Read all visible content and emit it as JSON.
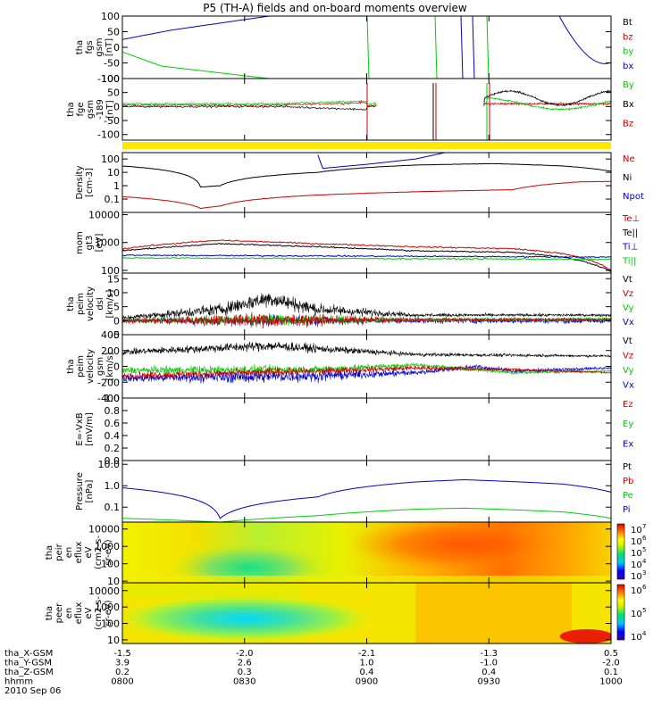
{
  "figure": {
    "title": "P5 (TH-A) fields and on-board moments overview",
    "date": "2010 Sep 06"
  },
  "chart_data": [
    {
      "type": "line",
      "title": "",
      "ylabel": [
        "tha",
        "fgs",
        "gsm",
        "[nT]"
      ],
      "ylim": [
        -100,
        100
      ],
      "yticks": [
        "100",
        "50",
        "0",
        "-50",
        "-100"
      ],
      "series": [
        {
          "name": "Bt",
          "color": "#000000",
          "values": []
        },
        {
          "name": "bz",
          "color": "#cc0000",
          "values": []
        },
        {
          "name": "by",
          "color": "#00cc00",
          "values": [
            [
              0,
              -15
            ],
            [
              0.4,
              -60
            ],
            [
              1.5,
              -100
            ]
          ]
        },
        {
          "name": "bx",
          "color": "#0000cc",
          "values": [
            [
              0,
              25
            ],
            [
              0.5,
              55
            ],
            [
              1.5,
              100
            ]
          ]
        }
      ]
    },
    {
      "type": "line",
      "ylabel": [
        "tha",
        "fge",
        "gsm",
        "-189",
        "[nT]"
      ],
      "ylim": [
        -120,
        100
      ],
      "yticks": [
        "100",
        "50",
        "0",
        "-50",
        "-100"
      ],
      "series": [
        {
          "name": "By",
          "color": "#00cc00",
          "values": []
        },
        {
          "name": "Bx",
          "color": "#000000",
          "values": []
        },
        {
          "name": "Bz",
          "color": "#cc0000",
          "values": []
        }
      ]
    },
    {
      "type": "line",
      "ylabel": [
        "Density",
        "[cm-3]"
      ],
      "ylim": [
        0.01,
        300
      ],
      "yscale": "log",
      "yticks": [
        "100",
        "10",
        "1",
        "0.1"
      ],
      "series": [
        {
          "name": "Ne",
          "color": "#cc0000",
          "values": [
            [
              0,
              0.15
            ],
            [
              0.8,
              0.02
            ],
            [
              1.0,
              0.03
            ],
            [
              2.0,
              0.2
            ],
            [
              3.0,
              0.35
            ],
            [
              4.0,
              0.5
            ],
            [
              4.7,
              2
            ],
            [
              5.0,
              2.1
            ]
          ]
        },
        {
          "name": "Ni",
          "color": "#000000",
          "values": [
            [
              0,
              30
            ],
            [
              0.8,
              0.8
            ],
            [
              1.0,
              1
            ],
            [
              2.0,
              10
            ],
            [
              3.0,
              35
            ],
            [
              3.8,
              45
            ],
            [
              4.5,
              30
            ],
            [
              5.0,
              12
            ]
          ]
        },
        {
          "name": "Npot",
          "color": "#0000cc",
          "values": [
            [
              2.0,
              200
            ],
            [
              2.05,
              20
            ],
            [
              2.5,
              40
            ],
            [
              3.0,
              100
            ],
            [
              3.3,
              300
            ]
          ]
        }
      ]
    },
    {
      "type": "line",
      "ylabel": [
        "mom",
        "gt3",
        "[eV]"
      ],
      "ylim": [
        80,
        12000
      ],
      "yscale": "log",
      "yticks": [
        "10000",
        "1000",
        "100"
      ],
      "series": [
        {
          "name": "Te⊥",
          "color": "#cc0000",
          "values": [
            [
              0,
              600
            ],
            [
              1.0,
              1200
            ],
            [
              2.0,
              900
            ],
            [
              3.0,
              700
            ],
            [
              4.0,
              600
            ],
            [
              4.5,
              400
            ],
            [
              5.0,
              100
            ]
          ]
        },
        {
          "name": "Te||",
          "color": "#000000",
          "values": [
            [
              0,
              500
            ],
            [
              1.0,
              900
            ],
            [
              2.0,
              700
            ],
            [
              3.0,
              500
            ],
            [
              4.0,
              450
            ],
            [
              4.5,
              300
            ],
            [
              5.0,
              90
            ]
          ]
        },
        {
          "name": "Ti⊥",
          "color": "#0000cc",
          "values": [
            [
              0,
              350
            ],
            [
              5.0,
              300
            ]
          ]
        },
        {
          "name": "Ti||",
          "color": "#00cc00",
          "values": [
            [
              0,
              280
            ],
            [
              5.0,
              250
            ]
          ]
        }
      ]
    },
    {
      "type": "line",
      "ylabel": [
        "tha",
        "peim",
        "velocity",
        "dsl",
        "[km/s]"
      ],
      "ylim": [
        -5,
        17
      ],
      "yticks": [
        "15",
        "10",
        "5",
        "0",
        "-5"
      ],
      "series": [
        {
          "name": "Vt",
          "color": "#000000",
          "values": []
        },
        {
          "name": "Vz",
          "color": "#cc0000",
          "values": []
        },
        {
          "name": "Vy",
          "color": "#00cc00",
          "values": []
        },
        {
          "name": "Vx",
          "color": "#0000cc",
          "values": []
        }
      ]
    },
    {
      "type": "line",
      "ylabel": [
        "tha",
        "peim",
        "velocity",
        "gsm",
        "[km/s]"
      ],
      "ylim": [
        -400,
        400
      ],
      "yticks": [
        "400",
        "200",
        "0",
        "-200",
        "-400"
      ],
      "series": [
        {
          "name": "Vt",
          "color": "#000000",
          "values": []
        },
        {
          "name": "Vz",
          "color": "#cc0000",
          "values": []
        },
        {
          "name": "Vy",
          "color": "#00cc00",
          "values": []
        },
        {
          "name": "Vx",
          "color": "#0000cc",
          "values": []
        }
      ]
    },
    {
      "type": "line",
      "ylabel": [
        "E=-VxB",
        "[mV/m]"
      ],
      "ylim": [
        0,
        1
      ],
      "yticks": [
        "1.0",
        "0.8",
        "0.6",
        "0.4",
        "0.2",
        "0.0"
      ],
      "series": [
        {
          "name": "Ez",
          "color": "#cc0000",
          "values": []
        },
        {
          "name": "Ey",
          "color": "#00cc00",
          "values": []
        },
        {
          "name": "Ex",
          "color": "#0000cc",
          "values": []
        }
      ]
    },
    {
      "type": "line",
      "ylabel": [
        "Pressure",
        "[nPa]"
      ],
      "ylim": [
        0.02,
        15
      ],
      "yscale": "log",
      "yticks": [
        "10.0",
        "1.0",
        "0.1"
      ],
      "series": [
        {
          "name": "Pt",
          "color": "#000000",
          "values": []
        },
        {
          "name": "Pb",
          "color": "#cc0000",
          "values": []
        },
        {
          "name": "Pe",
          "color": "#00cc00",
          "values": [
            [
              0,
              0.03
            ],
            [
              1.0,
              0.02
            ],
            [
              2.0,
              0.04
            ],
            [
              3.0,
              0.08
            ],
            [
              3.5,
              0.09
            ],
            [
              4.5,
              0.06
            ],
            [
              5.0,
              0.03
            ]
          ]
        },
        {
          "name": "Pi",
          "color": "#0000cc",
          "values": [
            [
              0,
              0.8
            ],
            [
              1.0,
              0.03
            ],
            [
              2.0,
              0.3
            ],
            [
              3.0,
              1.5
            ],
            [
              3.5,
              1.9
            ],
            [
              4.5,
              1.2
            ],
            [
              5.0,
              0.5
            ]
          ]
        }
      ]
    },
    {
      "type": "heatmap",
      "ylabel": [
        "tha",
        "peir",
        "en",
        "eflux",
        "eV",
        "(cm2-s-",
        "sr-eV)"
      ],
      "yscale": "log",
      "ylim": [
        8,
        25000
      ],
      "yticks": [
        "10000",
        "1000",
        "100",
        "10"
      ],
      "colorbar": {
        "ticks": [
          "10",
          "10",
          "10",
          "10",
          "10"
        ],
        "exponents": [
          "7",
          "6",
          "5",
          "4",
          "3"
        ]
      }
    },
    {
      "type": "heatmap",
      "ylabel": [
        "tha",
        "peer",
        "en",
        "eflux",
        "eV",
        "(cm2-s-",
        "sr-eV)"
      ],
      "yscale": "log",
      "ylim": [
        6,
        30000
      ],
      "yticks": [
        "10000",
        "1000",
        "100",
        "10"
      ],
      "colorbar": {
        "ticks": [
          "10",
          "10",
          "10"
        ],
        "exponents": [
          "6",
          "5",
          "4"
        ]
      }
    }
  ],
  "xaxis": {
    "rows": [
      {
        "label": "tha_X-GSM",
        "values": [
          "-1.5",
          "-2.0",
          "-2.1",
          "-1.3",
          "0.5"
        ]
      },
      {
        "label": "tha_Y-GSM",
        "values": [
          "3.9",
          "2.6",
          "1.0",
          "-1.0",
          "-2.0"
        ]
      },
      {
        "label": "tha_Z-GSM",
        "values": [
          "0.2",
          "0.3",
          "0.4",
          "0.4",
          "0.1"
        ]
      },
      {
        "label": "hhmm",
        "values": [
          "0800",
          "0830",
          "0900",
          "0930",
          "1000"
        ]
      }
    ]
  }
}
